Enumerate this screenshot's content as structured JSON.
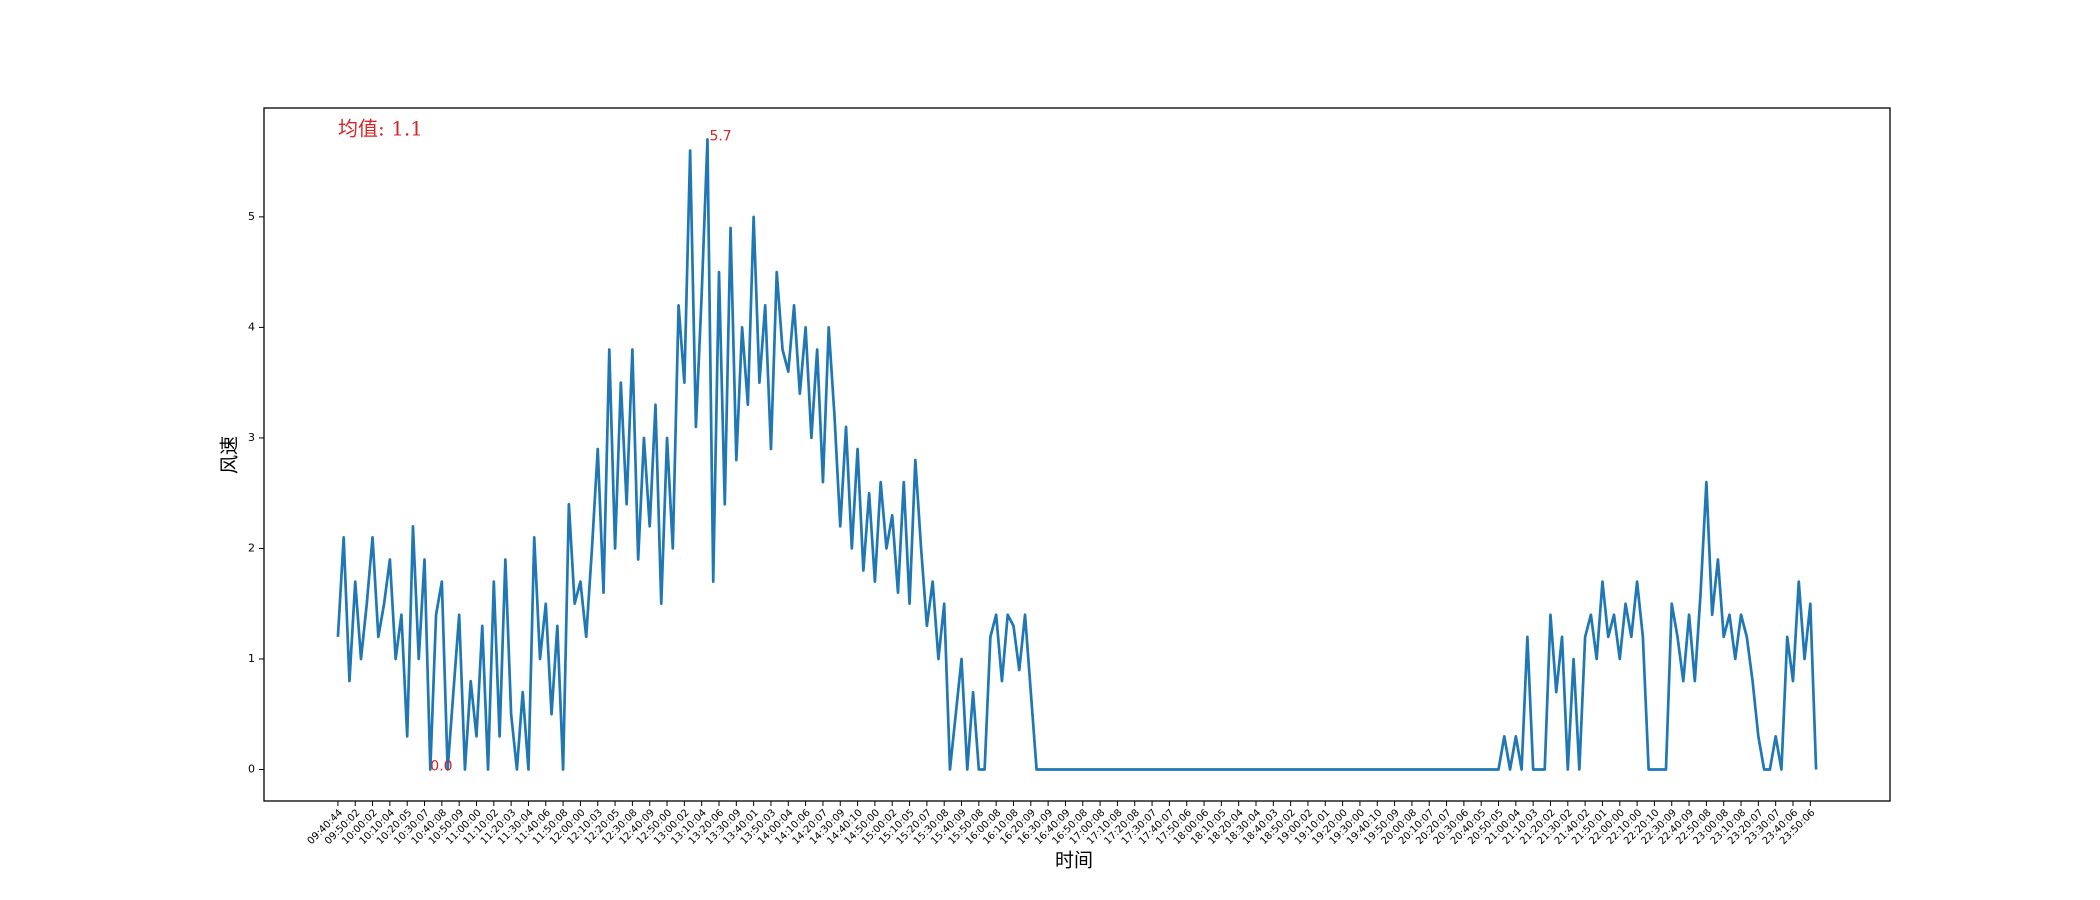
{
  "chart_data": {
    "type": "line",
    "xlabel": "时间",
    "ylabel": "风速",
    "annotations": {
      "mean": "均值: 1.1",
      "max": "5.7",
      "min": "0.0"
    },
    "color": "#1f77b4",
    "categories": [
      "09:40:44",
      null,
      null,
      "09:50:02",
      null,
      null,
      "10:00:02",
      null,
      null,
      "10:10:04",
      null,
      null,
      "10:20:05",
      null,
      null,
      "10:30:07",
      null,
      null,
      "10:40:08",
      null,
      null,
      "10:50:09",
      null,
      null,
      "11:00:00",
      null,
      null,
      "11:10:02",
      null,
      null,
      "11:20:03",
      null,
      null,
      "11:30:04",
      null,
      null,
      "11:40:06",
      null,
      null,
      "11:50:08",
      null,
      null,
      "12:00:00",
      null,
      null,
      "12:10:03",
      null,
      null,
      "12:20:05",
      null,
      null,
      "12:30:08",
      null,
      null,
      "12:40:09",
      null,
      null,
      "12:50:00",
      null,
      null,
      "13:00:02",
      null,
      null,
      "13:10:04",
      null,
      null,
      "13:20:06",
      null,
      null,
      "13:30:09",
      null,
      null,
      "13:40:01",
      null,
      null,
      "13:50:03",
      null,
      null,
      "14:00:04",
      null,
      null,
      "14:10:06",
      null,
      null,
      "14:20:07",
      null,
      null,
      "14:30:09",
      null,
      null,
      "14:40:10",
      null,
      null,
      "14:50:00",
      null,
      null,
      "15:00:02",
      null,
      null,
      "15:10:05",
      null,
      null,
      "15:20:07",
      null,
      null,
      "15:30:08",
      null,
      null,
      "15:40:09",
      null,
      null,
      "15:50:08",
      null,
      null,
      "16:00:08",
      null,
      null,
      "16:10:08",
      null,
      null,
      "16:20:09",
      null,
      null,
      "16:30:09",
      null,
      null,
      "16:40:09",
      null,
      null,
      "16:50:08",
      null,
      null,
      "17:00:08",
      null,
      null,
      "17:10:08",
      null,
      null,
      "17:20:08",
      null,
      null,
      "17:30:07",
      null,
      null,
      "17:40:07",
      null,
      null,
      "17:50:06",
      null,
      null,
      "18:00:06",
      null,
      null,
      "18:10:05",
      null,
      null,
      "18:20:04",
      null,
      null,
      "18:30:04",
      null,
      null,
      "18:40:03",
      null,
      null,
      "18:50:02",
      null,
      null,
      "19:00:02",
      null,
      null,
      "19:10:01",
      null,
      null,
      "19:20:00",
      null,
      null,
      "19:30:00",
      null,
      null,
      "19:40:10",
      null,
      null,
      "19:50:09",
      null,
      null,
      "20:00:08",
      null,
      null,
      "20:10:07",
      null,
      null,
      "20:20:07",
      null,
      null,
      "20:30:06",
      null,
      null,
      "20:40:05",
      null,
      null,
      "20:50:05",
      null,
      null,
      "21:00:04",
      null,
      null,
      "21:10:03",
      null,
      null,
      "21:20:02",
      null,
      null,
      "21:30:02",
      null,
      null,
      "21:40:02",
      null,
      null,
      "21:50:01",
      null,
      null,
      "22:00:00",
      null,
      null,
      "22:10:00",
      null,
      null,
      "22:20:10",
      null,
      null,
      "22:30:09",
      null,
      null,
      "22:40:09",
      null,
      null,
      "22:50:08",
      null,
      null,
      "23:00:08",
      null,
      null,
      "23:10:08",
      null,
      null,
      "23:20:07",
      null,
      null,
      "23:30:07",
      null,
      null,
      "23:40:06",
      null,
      null,
      "23:50:06",
      null
    ],
    "values": [
      1.2,
      2.1,
      0.8,
      1.7,
      1.0,
      1.5,
      2.1,
      1.2,
      1.5,
      1.9,
      1.0,
      1.4,
      0.3,
      2.2,
      1.0,
      1.9,
      0.0,
      1.4,
      1.7,
      0.0,
      0.7,
      1.4,
      0.0,
      0.8,
      0.3,
      1.3,
      0.0,
      1.7,
      0.3,
      1.9,
      0.5,
      0.0,
      0.7,
      0.0,
      2.1,
      1.0,
      1.5,
      0.5,
      1.3,
      0.0,
      2.4,
      1.5,
      1.7,
      1.2,
      2.0,
      2.9,
      1.6,
      3.8,
      2.0,
      3.5,
      2.4,
      3.8,
      1.9,
      3.0,
      2.2,
      3.3,
      1.5,
      3.0,
      2.0,
      4.2,
      3.5,
      5.6,
      3.1,
      4.3,
      5.7,
      1.7,
      4.5,
      2.4,
      4.9,
      2.8,
      4.0,
      3.3,
      5.0,
      3.5,
      4.2,
      2.9,
      4.5,
      3.8,
      3.6,
      4.2,
      3.4,
      4.0,
      3.0,
      3.8,
      2.6,
      4.0,
      3.2,
      2.2,
      3.1,
      2.0,
      2.9,
      1.8,
      2.5,
      1.7,
      2.6,
      2.0,
      2.3,
      1.6,
      2.6,
      1.5,
      2.8,
      2.0,
      1.3,
      1.7,
      1.0,
      1.5,
      0.0,
      0.5,
      1.0,
      0.0,
      0.7,
      0.0,
      0.0,
      1.2,
      1.4,
      0.8,
      1.4,
      1.3,
      0.9,
      1.4,
      0.7,
      0.0,
      0.0,
      0,
      0,
      0,
      0,
      0,
      0,
      0,
      0,
      0,
      0,
      0,
      0,
      0,
      0,
      0,
      0,
      0,
      0,
      0,
      0,
      0,
      0,
      0,
      0,
      0,
      0,
      0,
      0,
      0,
      0,
      0,
      0,
      0,
      0,
      0,
      0,
      0,
      0,
      0,
      0,
      0,
      0,
      0,
      0,
      0,
      0,
      0,
      0,
      0,
      0,
      0,
      0,
      0,
      0,
      0,
      0,
      0,
      0,
      0,
      0,
      0,
      0,
      0,
      0,
      0,
      0,
      0,
      0,
      0,
      0,
      0,
      0,
      0,
      0,
      0,
      0,
      0,
      0,
      0.0,
      0.3,
      0.0,
      0.3,
      0.0,
      1.2,
      0.0,
      0.0,
      0.0,
      1.4,
      0.7,
      1.2,
      0.0,
      1.0,
      0.0,
      1.2,
      1.4,
      1.0,
      1.7,
      1.2,
      1.4,
      1.0,
      1.5,
      1.2,
      1.7,
      1.2,
      0.0,
      0.0,
      0.0,
      0.0,
      1.5,
      1.2,
      0.8,
      1.4,
      0.8,
      1.6,
      2.6,
      1.4,
      1.9,
      1.2,
      1.4,
      1.0,
      1.4,
      1.2,
      0.8,
      0.3,
      0.0,
      0.0,
      0.3,
      0.0,
      1.2,
      0.8,
      1.7,
      1.0,
      1.5,
      0.0
    ],
    "xlim": [
      -12.8,
      268.8
    ],
    "ylim": [
      -0.285,
      5.985
    ],
    "yticks": [
      0,
      1,
      2,
      3,
      4,
      5
    ]
  }
}
